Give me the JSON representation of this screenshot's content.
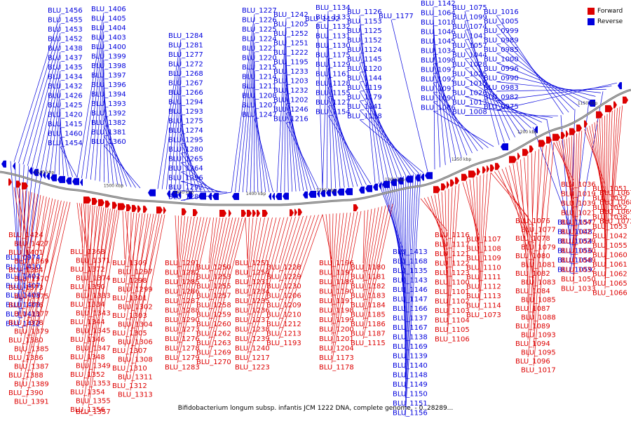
{
  "title": "Bifidobacterium longum subsp. infantis JCM 1222 DNA, complete genome. - 0..28289...",
  "legend": {
    "forward": "Forward",
    "reverse": "Reverse"
  },
  "colors": {
    "forward": "#dd0000",
    "reverse": "#0000dd",
    "axis": "#888888"
  },
  "axis_ticks": [
    "1550 kbp",
    "1500 kbp",
    "1450 kbp",
    "1400 kbp",
    "1350 kbp",
    "1300 kbp",
    "1250 kbp",
    "1200 kbp",
    "1150 kbp"
  ],
  "reverse_labels": [
    "BLU_1456",
    "BLU_1455",
    "BLU_1453",
    "BLU_1452",
    "BLU_1438",
    "BLU_1437",
    "BLU_1435",
    "BLU_1434",
    "BLU_1432",
    "BLU_1426",
    "BLU_1425",
    "BLU_1420",
    "BLU_1415",
    "BLU_1460",
    "BLU_1454",
    "BLU_1406",
    "BLU_1405",
    "BLU_1404",
    "BLU_1403",
    "BLU_1400",
    "BLU_1399",
    "BLU_1398",
    "BLU_1397",
    "BLU_1396",
    "BLU_1394",
    "BLU_1393",
    "BLU_1392",
    "BLU_1382",
    "BLU_1381",
    "BLU_1360",
    "BLU_1284",
    "BLU_1281",
    "BLU_1277",
    "BLU_1272",
    "BLU_1268",
    "BLU_1267",
    "BLU_1266",
    "BLU_1294",
    "BLU_1293",
    "BLU_1275",
    "BLU_1274",
    "BLU_1295",
    "BLU_1280",
    "BLU_1265",
    "BLU_1264",
    "BLU_1296",
    "BLU_1292",
    "BLU_1289",
    "BLU_1227",
    "BLU_1226",
    "BLU_1225",
    "BLU_1224",
    "BLU_1221",
    "BLU_1220",
    "BLU_1215",
    "BLU_1214",
    "BLU_1211",
    "BLU_1208",
    "BLU_1207",
    "BLU_1247",
    "BLU_1242",
    "BLU_1205",
    "BLU_1252",
    "BLU_1251",
    "BLU_1222",
    "BLU_1195",
    "BLU_1233",
    "BLU_1203",
    "BLU_1232",
    "BLU_1202",
    "BLU_1246",
    "BLU_1216",
    "BLU_1192",
    "BLU_1134",
    "BLU_1133",
    "BLU_1132",
    "BLU_1131",
    "BLU_1130",
    "BLU_1175",
    "BLU_1129",
    "BLU_1161",
    "BLU_1128",
    "BLU_1155",
    "BLU_1127",
    "BLU_1154",
    "BLU_1126",
    "BLU_1153",
    "BLU_1125",
    "BLU_1152",
    "BLU_1124",
    "BLU_1145",
    "BLU_1120",
    "BLU_1144",
    "BLU_1119",
    "BLU_1179",
    "BLU_1141",
    "BLU_1118",
    "BLU_1177",
    "BLU_1142",
    "BLU_1064",
    "BLU_1018",
    "BLU_1046",
    "BLU_1045",
    "BLU_1034",
    "BLU_1098",
    "BLU_1097",
    "BLU_1092",
    "BLU_1091",
    "BLU_1090",
    "BLU_1086",
    "BLU_1075",
    "BLU_1099",
    "BLU_1074",
    "BLU_1041",
    "BLU_1057",
    "BLU_1044",
    "BLU_1028",
    "BLU_1025",
    "BLU_1015",
    "BLU_1026",
    "BLU_1013",
    "BLU_1008",
    "BLU_1016",
    "BLU_1005",
    "BLU_0999",
    "BLU_0989",
    "BLU_0985",
    "BLU_1000",
    "BLU_0996",
    "BLU_0990",
    "BLU_0983",
    "BLU_0982",
    "BLU_0975",
    "BLU_0974",
    "BLU_1410",
    "BLU_1402",
    "BLU_1407",
    "BLU_1408",
    "BLU_1409",
    "BLU_1411",
    "BLU_1412",
    "BLU_1413",
    "BLU_1168",
    "BLU_1135",
    "BLU_1143",
    "BLU_1146",
    "BLU_1147",
    "BLU_1166",
    "BLU_1137",
    "BLU_1167",
    "BLU_1138",
    "BLU_1169",
    "BLU_1139",
    "BLU_1140",
    "BLU_1148",
    "BLU_1149",
    "BLU_1150",
    "BLU_1151",
    "BLU_1156",
    "BLU_1157",
    "BLU_1048",
    "BLU_1054",
    "BLU_1056",
    "BLU_1058",
    "BLU_1059",
    "BLU_1063"
  ],
  "forward_labels": [
    "BLU_1424",
    "BLU_1427",
    "BLU_1401",
    "BLU_1369",
    "BLU_1384",
    "BLU_1370",
    "BLU_1373",
    "BLU_1375",
    "BLU_1376",
    "BLU_1377",
    "BLU_1378",
    "BLU_1379",
    "BLU_1380",
    "BLU_1385",
    "BLU_1386",
    "BLU_1387",
    "BLU_1388",
    "BLU_1389",
    "BLU_1390",
    "BLU_1391",
    "BLU_1368",
    "BLU_1371",
    "BLU_1372",
    "BLU_1374",
    "BLU_1350",
    "BLU_1333",
    "BLU_1334",
    "BLU_1343",
    "BLU_1344",
    "BLU_1345",
    "BLU_1346",
    "BLU_1347",
    "BLU_1348",
    "BLU_1349",
    "BLU_1352",
    "BLU_1353",
    "BLU_1354",
    "BLU_1355",
    "BLU_1356",
    "BLU_1357",
    "BLU_1309",
    "BLU_1297",
    "BLU_1298",
    "BLU_1299",
    "BLU_1301",
    "BLU_1302",
    "BLU_1303",
    "BLU_1304",
    "BLU_1305",
    "BLU_1306",
    "BLU_1307",
    "BLU_1308",
    "BLU_1310",
    "BLU_1311",
    "BLU_1312",
    "BLU_1313",
    "BLU_1291",
    "BLU_1282",
    "BLU_1285",
    "BLU_1286",
    "BLU_1287",
    "BLU_1288",
    "BLU_1290",
    "BLU_1273",
    "BLU_1276",
    "BLU_1278",
    "BLU_1279",
    "BLU_1283",
    "BLU_1250",
    "BLU_1253",
    "BLU_1255",
    "BLU_1257",
    "BLU_1258",
    "BLU_1259",
    "BLU_1260",
    "BLU_1262",
    "BLU_1263",
    "BLU_1269",
    "BLU_1270",
    "BLU_1251",
    "BLU_1254",
    "BLU_1231",
    "BLU_1234",
    "BLU_1235",
    "BLU_1236",
    "BLU_1237",
    "BLU_1238",
    "BLU_1239",
    "BLU_1240",
    "BLU_1217",
    "BLU_1223",
    "BLU_1228",
    "BLU_1229",
    "BLU_1230",
    "BLU_1206",
    "BLU_1209",
    "BLU_1210",
    "BLU_1212",
    "BLU_1213",
    "BLU_1193",
    "BLU_1196",
    "BLU_1197",
    "BLU_1189",
    "BLU_1190",
    "BLU_1191",
    "BLU_1198",
    "BLU_1199",
    "BLU_1200",
    "BLU_1201",
    "BLU_1204",
    "BLU_1173",
    "BLU_1178",
    "BLU_1180",
    "BLU_1181",
    "BLU_1182",
    "BLU_1183",
    "BLU_1184",
    "BLU_1185",
    "BLU_1186",
    "BLU_1187",
    "BLU_1115",
    "BLU_1116",
    "BLU_1117",
    "BLU_1121",
    "BLU_1122",
    "BLU_1123",
    "BLU_1100",
    "BLU_1101",
    "BLU_1102",
    "BLU_1103",
    "BLU_1104",
    "BLU_1105",
    "BLU_1106",
    "BLU_1107",
    "BLU_1108",
    "BLU_1109",
    "BLU_1110",
    "BLU_1111",
    "BLU_1112",
    "BLU_1113",
    "BLU_1114",
    "BLU_1073",
    "BLU_1076",
    "BLU_1077",
    "BLU_1078",
    "BLU_1079",
    "BLU_1080",
    "BLU_1081",
    "BLU_1082",
    "BLU_1083",
    "BLU_1084",
    "BLU_1085",
    "BLU_1087",
    "BLU_1088",
    "BLU_1089",
    "BLU_1093",
    "BLU_1094",
    "BLU_1095",
    "BLU_1096",
    "BLU_1017",
    "BLU_1036",
    "BLU_1019",
    "BLU_1039",
    "BLU_1021",
    "BLU_1047",
    "BLU_1027",
    "BLU_1029",
    "BLU_1030",
    "BLU_1049",
    "BLU_1032",
    "BLU_1050",
    "BLU_1033",
    "BLU_1051",
    "BLU_1037",
    "BLU_1052",
    "BLU_1038",
    "BLU_1053",
    "BLU_1042",
    "BLU_1055",
    "BLU_1060",
    "BLU_1061",
    "BLU_1062",
    "BLU_1065",
    "BLU_1066",
    "BLU_1067",
    "BLU_1068",
    "BLU_1069",
    "BLU_1072"
  ]
}
